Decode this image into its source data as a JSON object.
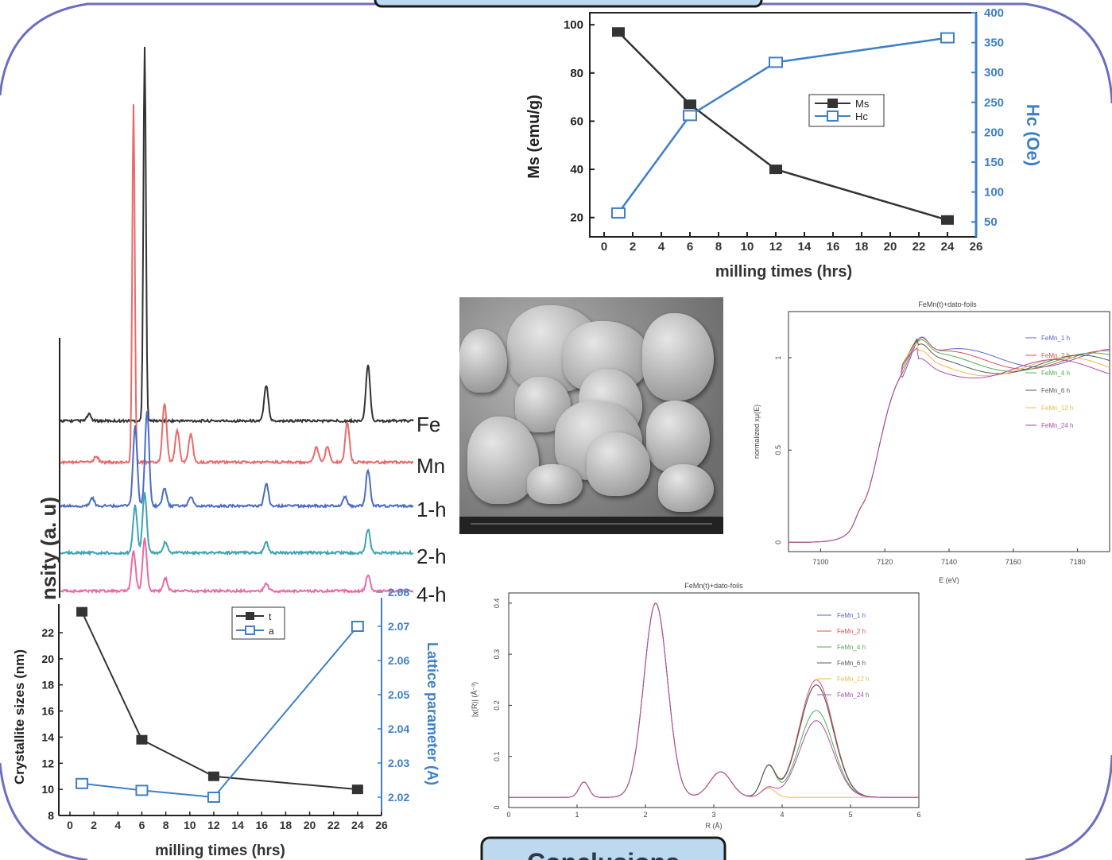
{
  "slide": {
    "frame_color": "#6a6fbf",
    "button_bottom_label": "Conclusions",
    "colors": {
      "button_fill": "#bcd9ef",
      "button_border": "#1a1a1a"
    }
  },
  "chart_data": [
    {
      "id": "ms-hc",
      "type": "line",
      "xlabel": "milling times (hrs)",
      "ylabel": "Ms (emu/g)",
      "y2label": "Hc (Oe)",
      "xlim": [
        0,
        26
      ],
      "ylim": [
        12,
        105
      ],
      "y2lim": [
        25,
        400
      ],
      "x_ticks": [
        "0",
        "2",
        "4",
        "6",
        "8",
        "10",
        "12",
        "14",
        "16",
        "18",
        "20",
        "22",
        "24",
        "26"
      ],
      "y_ticks": [
        "20",
        "40",
        "60",
        "80",
        "100"
      ],
      "y2_ticks": [
        "50",
        "100",
        "150",
        "200",
        "250",
        "300",
        "350",
        "400"
      ],
      "legend": [
        "Ms",
        "Hc"
      ],
      "series": [
        {
          "name": "Ms",
          "axis": "left",
          "color": "#333333",
          "marker": "filled-square",
          "x": [
            1,
            6,
            12,
            24
          ],
          "y": [
            97,
            67,
            40,
            19
          ]
        },
        {
          "name": "Hc",
          "axis": "right",
          "color": "#3d7fc8",
          "marker": "open-square",
          "x": [
            1,
            6,
            12,
            24
          ],
          "y": [
            65,
            228,
            317,
            358
          ]
        }
      ]
    },
    {
      "id": "xrd",
      "type": "line",
      "ylabel": "Intensity (a. u)",
      "visible_ylabel": "nsity (a. u)",
      "series": [
        {
          "name": "Fe",
          "color": "#333333"
        },
        {
          "name": "Mn",
          "color": "#e96a6a"
        },
        {
          "name": "1-h",
          "color": "#4a6cc4"
        },
        {
          "name": "2-h",
          "color": "#3ea3b3"
        },
        {
          "name": "4-h",
          "color": "#e86aa8"
        }
      ]
    },
    {
      "id": "crystallite",
      "type": "line",
      "xlabel": "milling times (hrs)",
      "ylabel": "Crystallite sizes (nm)",
      "y2label": "Lattice parameter (A)",
      "xlim": [
        -1,
        26
      ],
      "ylim": [
        8,
        22
      ],
      "y2lim": [
        2.016,
        2.08
      ],
      "x_ticks": [
        "0",
        "2",
        "4",
        "6",
        "8",
        "10",
        "12",
        "14",
        "16",
        "18",
        "20",
        "22",
        "24",
        "26"
      ],
      "y_ticks": [
        "8",
        "10",
        "12",
        "14",
        "16",
        "18",
        "20",
        "22"
      ],
      "y_ticks_note": "top tick partly hidden",
      "y2_ticks": [
        "2.02",
        "2.03",
        "2.04",
        "2.05",
        "2.06",
        "2.07",
        "2.08"
      ],
      "legend": [
        "t",
        "a"
      ],
      "series": [
        {
          "name": "t",
          "axis": "left",
          "color": "#333333",
          "marker": "filled-square",
          "x": [
            1,
            6,
            12,
            24
          ],
          "y": [
            23.6,
            13.8,
            11.0,
            10.0
          ]
        },
        {
          "name": "a",
          "axis": "right",
          "color": "#3d7fc8",
          "marker": "open-square",
          "x": [
            1,
            6,
            12,
            24
          ],
          "y": [
            2.024,
            2.022,
            2.02,
            2.07
          ]
        }
      ]
    },
    {
      "id": "xanes",
      "type": "line",
      "title": "FeMn(t)+dato-foils",
      "xlabel": "E (eV)",
      "ylabel": "normalized xμ(E)",
      "xlim": [
        7090,
        7190
      ],
      "ylim": [
        -0.05,
        1.25
      ],
      "x_ticks": [
        "7100",
        "7120",
        "7140",
        "7160",
        "7180"
      ],
      "y_ticks": [
        "0",
        "0.5",
        "1"
      ],
      "legend": [
        "FeMn_1 h",
        "FeMn_2 h",
        "FeMn_4 h",
        "FeMn_6 h",
        "FeMn_12 h",
        "FeMn_24 h"
      ],
      "series_colors": [
        "#5a63d8",
        "#e05050",
        "#4fae4f",
        "#5a5a5a",
        "#f0b84a",
        "#b04aa8"
      ]
    },
    {
      "id": "exafs",
      "type": "line",
      "title": "FeMn(t)+dato-foils",
      "xlabel": "R (Å)",
      "ylabel": "|χ(R)| (Å⁻³)",
      "xlim": [
        0,
        6
      ],
      "ylim": [
        0,
        0.42
      ],
      "x_ticks": [
        "0",
        "1",
        "2",
        "3",
        "4",
        "5",
        "6"
      ],
      "y_ticks": [
        "0",
        "0.1",
        "0.2",
        "0.3",
        "0.4"
      ],
      "legend": [
        "FeMn_1 h",
        "FeMn_2 h",
        "FeMn_4 h",
        "FeMn_6 h",
        "FeMn_12 h",
        "FeMn_24 h"
      ],
      "series_colors": [
        "#5a63d8",
        "#e05050",
        "#4fae4f",
        "#5a5a5a",
        "#f0b84a",
        "#b04aa8"
      ]
    }
  ]
}
